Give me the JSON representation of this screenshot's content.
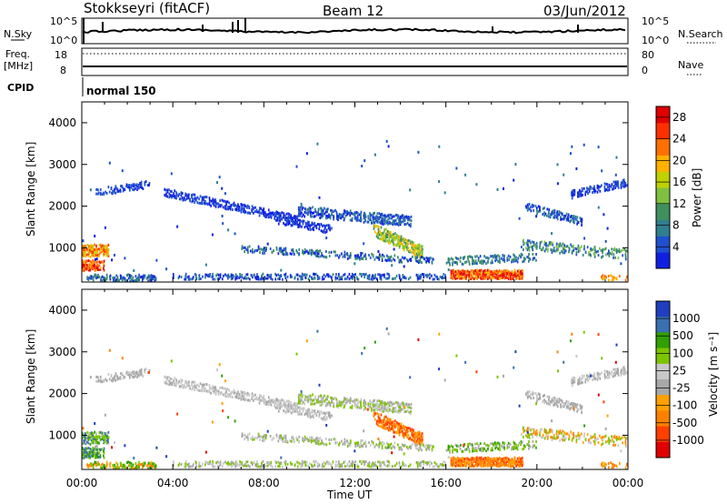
{
  "header": {
    "title": "Stokkseyri (fitACF)",
    "beam": "Beam 12",
    "date": "03/Jun/2012"
  },
  "noise_panel": {
    "left_label": "N.Sky",
    "right_label": "N.Search",
    "left_ticks": [
      "10^5",
      "10^0"
    ],
    "right_ticks": [
      "10^5",
      "10^0"
    ]
  },
  "freq_panel": {
    "left_label_1": "Freq.",
    "left_label_2": "[MHz]",
    "right_label": "Nave",
    "left_ticks": [
      "18",
      "8"
    ],
    "right_ticks": [
      "80",
      "0"
    ]
  },
  "cpid": {
    "label": "CPID",
    "value": "normal 150"
  },
  "colors": {
    "velocity_scale": [
      "#e00000",
      "#ff4000",
      "#ff8000",
      "#ffa000",
      "#a8a8a8",
      "#c8c8c8",
      "#7cc400",
      "#30a000",
      "#3a70b0",
      "#1f3fbf"
    ],
    "power_scale": [
      "#1020e0",
      "#2050d0",
      "#2f7f8f",
      "#3f8f5f",
      "#80c040",
      "#c0d000",
      "#ffb000",
      "#ff7000",
      "#ff3000",
      "#e00000"
    ]
  },
  "chart_data": [
    {
      "type": "heatmap",
      "name": "power",
      "ylabel": "Slant Range [km]",
      "xlabel": "",
      "yticks": [
        "1000",
        "2000",
        "3000",
        "4000"
      ],
      "ylim": [
        180,
        4500
      ],
      "xlim_hours": [
        0,
        24
      ],
      "xticks": [
        "00:00",
        "04:00",
        "08:00",
        "12:00",
        "16:00",
        "20:00",
        "00:00"
      ],
      "colorbar_label": "Power [dB]",
      "colorbar_ticks": [
        "4",
        "8",
        "12",
        "16",
        "20",
        "24",
        "28"
      ],
      "colorbar_range": [
        0,
        30
      ]
    },
    {
      "type": "heatmap",
      "name": "velocity",
      "ylabel": "Slant Range [km]",
      "xlabel": "Time UT",
      "yticks": [
        "1000",
        "2000",
        "3000",
        "4000"
      ],
      "ylim": [
        180,
        4500
      ],
      "xlim_hours": [
        0,
        24
      ],
      "xticks": [
        "00:00",
        "04:00",
        "08:00",
        "12:00",
        "16:00",
        "20:00",
        "00:00"
      ],
      "colorbar_label": "Velocity [m s⁻¹]",
      "colorbar_ticks": [
        "1000",
        "500",
        "100",
        "25",
        "-25",
        "-100",
        "-500",
        "-1000"
      ]
    }
  ]
}
